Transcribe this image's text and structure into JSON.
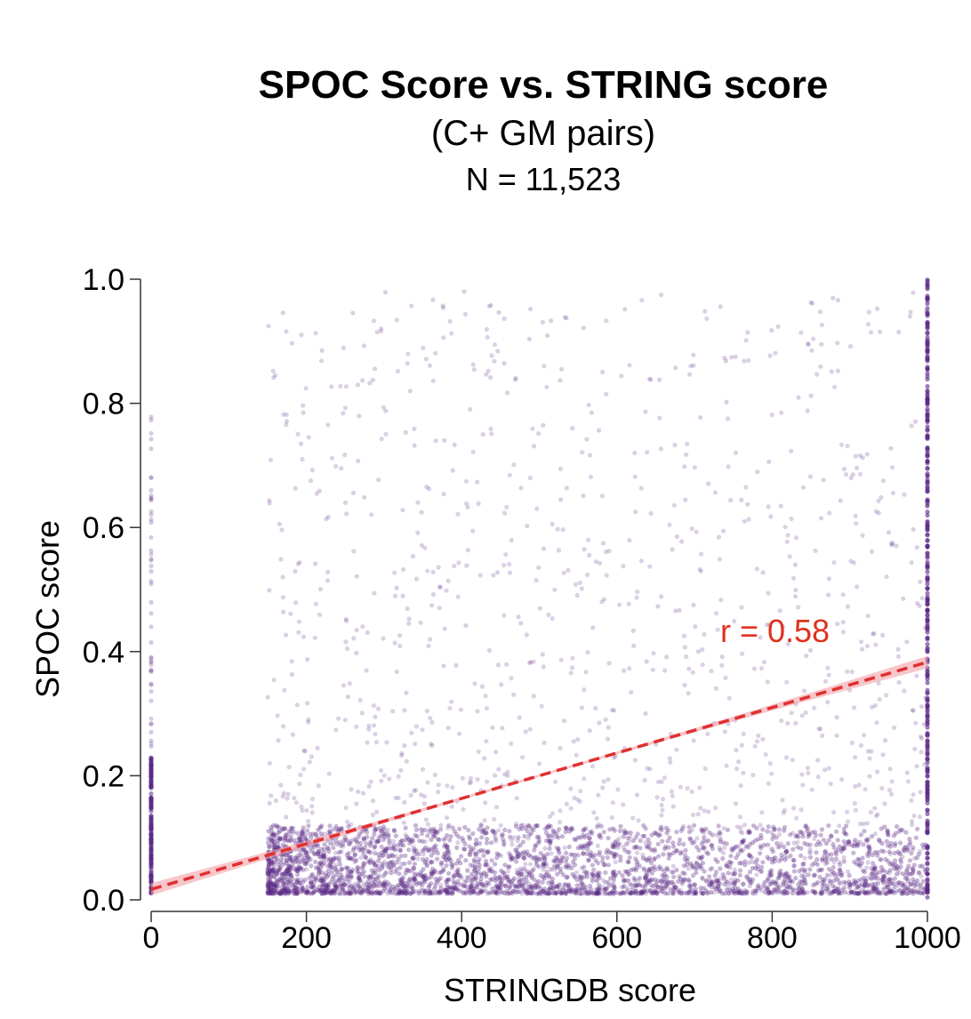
{
  "chart_data": {
    "type": "scatter",
    "title": "SPOC Score vs. STRING score",
    "subtitle": "(C+ GM pairs)",
    "n_label": "N = 11,523",
    "xlabel": "STRINGDB score",
    "ylabel": "SPOC score",
    "xlim": [
      0,
      1000
    ],
    "ylim": [
      0,
      1.0
    ],
    "x_ticks": [
      {
        "value": 0,
        "label": "0"
      },
      {
        "value": 200,
        "label": "200"
      },
      {
        "value": 400,
        "label": "400"
      },
      {
        "value": 600,
        "label": "600"
      },
      {
        "value": 800,
        "label": "800"
      },
      {
        "value": 1000,
        "label": "1000"
      }
    ],
    "y_ticks": [
      {
        "value": 0.0,
        "label": "0.0"
      },
      {
        "value": 0.2,
        "label": "0.2"
      },
      {
        "value": 0.4,
        "label": "0.4"
      },
      {
        "value": 0.6,
        "label": "0.6"
      },
      {
        "value": 0.8,
        "label": "0.8"
      },
      {
        "value": 1.0,
        "label": "1.0"
      }
    ],
    "grid": false,
    "fit_line": {
      "slope": 0.000366,
      "intercept": 0.017,
      "x_range": [
        0,
        1000
      ],
      "label": "r = 0.58"
    },
    "colors": {
      "points": "#5b2a86",
      "fit_line": "#e03030",
      "fit_band": "#f2a0a8",
      "annotation": "#e0301e",
      "axis": "#333333"
    },
    "clusters": [
      {
        "x_min": 0,
        "x_max": 0,
        "y_min": 0.01,
        "y_max": 0.78
      },
      {
        "x_min": 150,
        "x_max": 1000,
        "y_min": 0.01,
        "y_max": 0.12
      },
      {
        "x_min": 150,
        "x_max": 1000,
        "y_min": 0.0,
        "y_max": 0.98
      },
      {
        "x_min": 1000,
        "x_max": 1000,
        "y_min": 0.0,
        "y_max": 1.0
      }
    ]
  }
}
